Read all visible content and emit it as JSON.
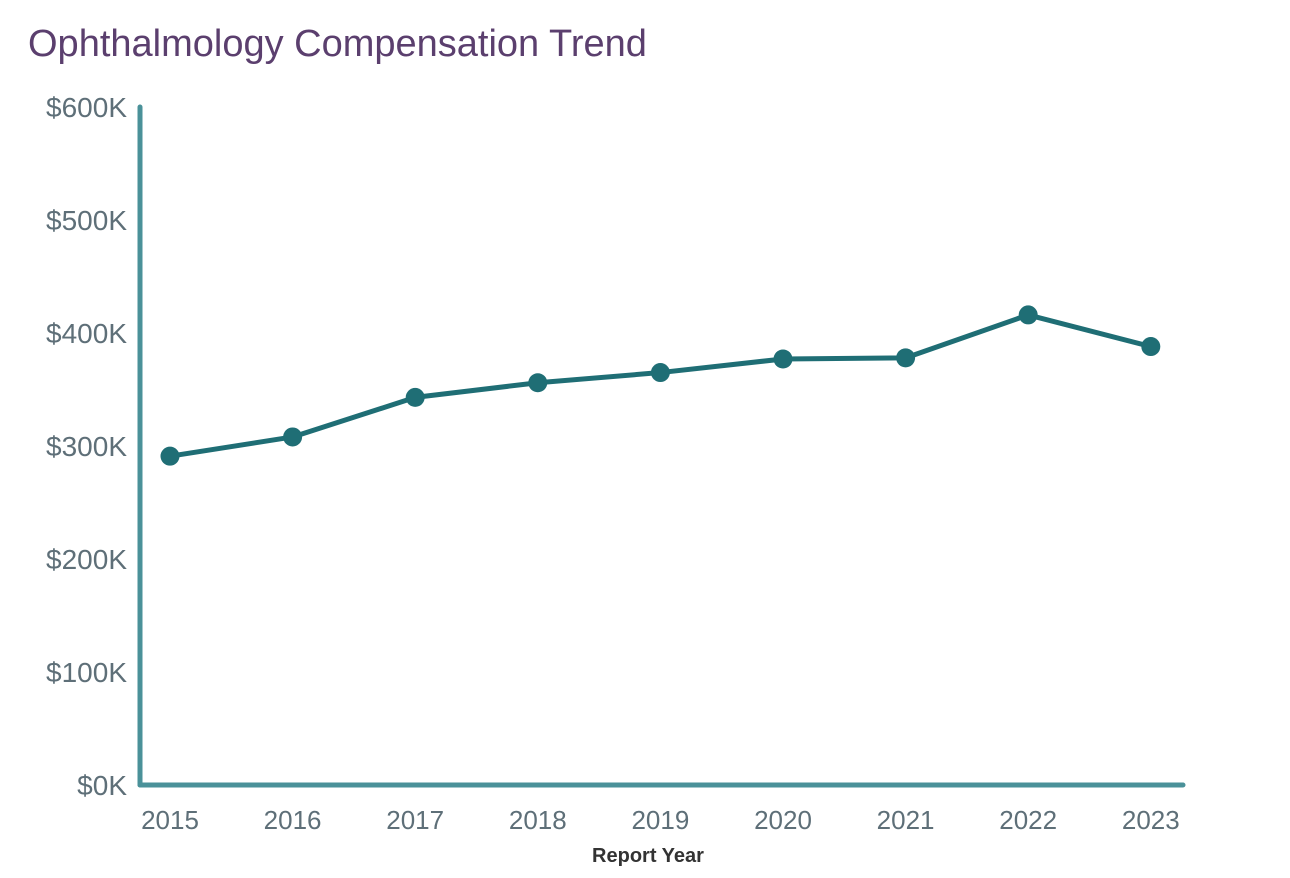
{
  "chart_data": {
    "type": "line",
    "title": "Ophthalmology Compensation Trend",
    "xlabel": "Report Year",
    "ylabel": "",
    "categories": [
      "2015",
      "2016",
      "2017",
      "2018",
      "2019",
      "2020",
      "2021",
      "2022",
      "2023"
    ],
    "series": [
      {
        "values": [
          291000,
          308000,
          343000,
          356000,
          365000,
          377000,
          378000,
          416000,
          388000
        ]
      }
    ],
    "ylim": [
      0,
      600000
    ],
    "yticks": [
      0,
      100000,
      200000,
      300000,
      400000,
      500000,
      600000
    ],
    "ytick_labels": [
      "$0K",
      "$100K",
      "$200K",
      "$300K",
      "$400K",
      "$500K",
      "$600K"
    ],
    "grid": false,
    "legend": "none",
    "colors": {
      "line": "#1f6e75",
      "axis": "#4a9199",
      "title": "#5b3f6e",
      "ticks": "#5e6f78"
    }
  }
}
